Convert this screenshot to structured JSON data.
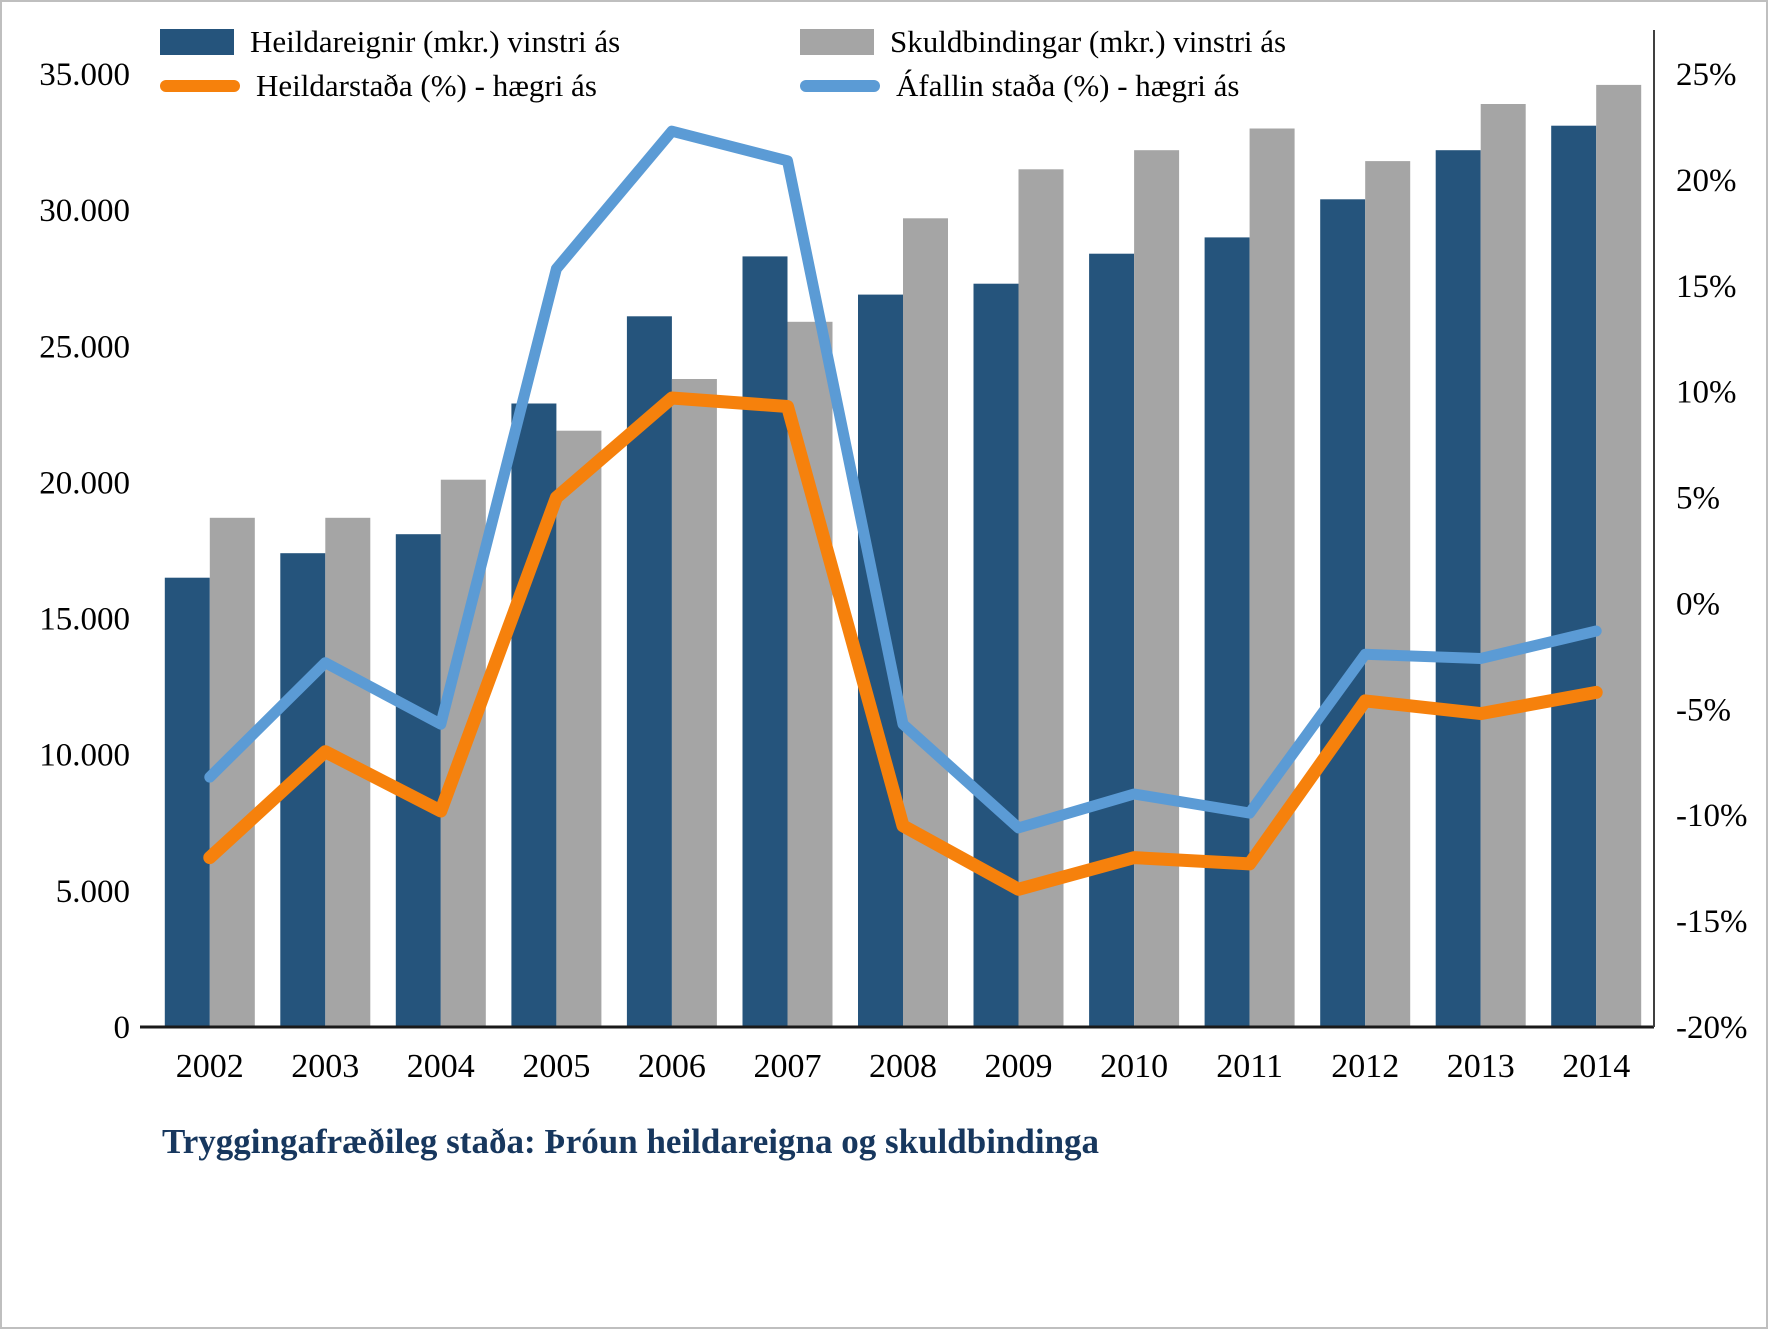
{
  "page": {
    "title": "Tryggingafræðileg staða: Þróun heildareigna og skuldbindinga"
  },
  "legend": [
    {
      "label": "Heildareignir (mkr.) vinstri ás",
      "type": "bar",
      "color": "#25547C"
    },
    {
      "label": "Skuldbindingar (mkr.) vinstri ás",
      "type": "bar",
      "color": "#A5A5A5"
    },
    {
      "label": "Heildarstaða (%) - hægri ás",
      "type": "line",
      "color": "#F6810C"
    },
    {
      "label": "Áfallin staða (%) - hægri ás",
      "type": "line",
      "color": "#5B9BD5"
    }
  ],
  "chart_data": {
    "type": "bar",
    "subtype": "combo-bar-line",
    "title": "Tryggingafræðileg staða: Þróun heildareigna og skuldbindinga",
    "categories": [
      "2002",
      "2003",
      "2004",
      "2005",
      "2006",
      "2007",
      "2008",
      "2009",
      "2010",
      "2011",
      "2012",
      "2013",
      "2014"
    ],
    "series": [
      {
        "name": "Heildareignir (mkr.) vinstri ás",
        "type": "bar",
        "axis": "left",
        "color": "#25547C",
        "values": [
          16500,
          17400,
          18100,
          22900,
          26100,
          28300,
          26900,
          27300,
          28400,
          29000,
          30400,
          32200,
          33100
        ]
      },
      {
        "name": "Skuldbindingar (mkr.) vinstri ás",
        "type": "bar",
        "axis": "left",
        "color": "#A5A5A5",
        "values": [
          18700,
          18700,
          20100,
          21900,
          23800,
          25900,
          29700,
          31500,
          32200,
          33000,
          31800,
          33900,
          34600
        ]
      },
      {
        "name": "Heildarstaða (%) - hægri ás",
        "type": "line",
        "axis": "right",
        "color": "#F6810C",
        "values": [
          -12.0,
          -7.0,
          -9.8,
          5.0,
          9.7,
          9.3,
          -10.5,
          -13.5,
          -12.0,
          -12.3,
          -4.6,
          -5.2,
          -4.2
        ]
      },
      {
        "name": "Áfallin staða (%) - hægri ás",
        "type": "line",
        "axis": "right",
        "color": "#5B9BD5",
        "values": [
          -8.2,
          -2.8,
          -5.7,
          15.8,
          22.3,
          20.9,
          -5.7,
          -10.6,
          -9.0,
          -9.9,
          -2.4,
          -2.6,
          -1.3
        ]
      }
    ],
    "left_axis": {
      "min": 0,
      "max": 35000,
      "tick_step": 5000,
      "tick_labels": [
        "0",
        "5.000",
        "10.000",
        "15.000",
        "20.000",
        "25.000",
        "30.000",
        "35.000"
      ]
    },
    "right_axis": {
      "min": -20,
      "max": 25,
      "tick_step": 5,
      "tick_labels": [
        "-20%",
        "-15%",
        "-10%",
        "-5%",
        "0%",
        "5%",
        "10%",
        "15%",
        "20%",
        "25%"
      ]
    },
    "grid": false,
    "legend_position": "top"
  }
}
